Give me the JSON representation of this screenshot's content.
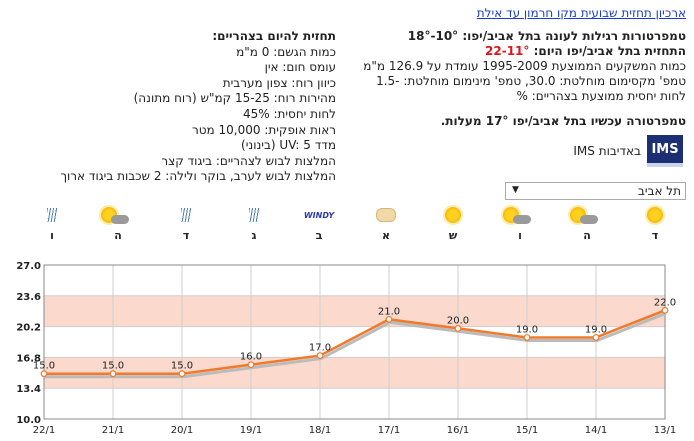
{
  "header": {
    "archive_link": "ארכיון תחזית שבועית מקו חרמון עד אילת"
  },
  "today_summary": {
    "normal_temp_label": "טמפרטורות רגילות לעונה בתל אביב/יפו:",
    "normal_temp_value": "10°-18°",
    "forecast_label": "התחזית בתל אביב/יפו היום:",
    "forecast_value": "11°-",
    "forecast_high": "22",
    "rain_stats": "כמות המשקעים הממוצעת 1995-2009 עומדת על 126.9 מ\"מ",
    "extremes": "טמפ' מקסימום מוחלטת: 30.0, טמפ' מינימום מוחלטת: -1.5",
    "humidity_avg": "לחות יחסית ממוצעת בצהריים: %",
    "current_temp": "טמפרטורה עכשיו בתל אביב/יפו 17° מעלות.",
    "credit": "באדיבות IMS",
    "logo_text": "IMS"
  },
  "noon_forecast": {
    "title": "תחזית להיום בצהריים:",
    "rows": [
      "כמות הגשם: 0 מ\"מ",
      "עומס חום: אין",
      "כיוון רוח: צפון מערבית",
      "מהירות רוח: 15-25 קמ\"ש (רוח מתונה)",
      "לחות יחסית: 45%",
      "ראות אופקית: 10,000 מטר",
      "מדד UV: 5 (בינוני)",
      "המלצות לבוש לצהריים: ביגוד קצר",
      "המלצות לבוש לערב, בוקר ולילה: 2 שכבות ביגוד ארוך"
    ]
  },
  "city_select": {
    "value": "תל אביב",
    "arrow": "▼"
  },
  "days": [
    {
      "label": "ו",
      "icon": "rain"
    },
    {
      "label": "ה",
      "icon": "sun-cloud"
    },
    {
      "label": "ד",
      "icon": "rain"
    },
    {
      "label": "ג",
      "icon": "rain"
    },
    {
      "label": "ב",
      "icon": "windy",
      "icon_text": "WINDY"
    },
    {
      "label": "א",
      "icon": "haze"
    },
    {
      "label": "ש",
      "icon": "sun"
    },
    {
      "label": "ו",
      "icon": "sun-cloud"
    },
    {
      "label": "ה",
      "icon": "sun-cloud"
    },
    {
      "label": "ד",
      "icon": "sun"
    }
  ],
  "chart_data": {
    "type": "line",
    "categories": [
      "22/1",
      "21/1",
      "20/1",
      "19/1",
      "18/1",
      "17/1",
      "16/1",
      "15/1",
      "14/1",
      "13/1"
    ],
    "values": [
      15.0,
      15.0,
      15.0,
      16.0,
      17.0,
      21.0,
      20.0,
      19.0,
      19.0,
      22.0
    ],
    "ylim": [
      10.0,
      27.0
    ],
    "yticks": [
      "10.0",
      "13.4",
      "16.8",
      "20.2",
      "23.6",
      "27.0"
    ],
    "bands": [
      [
        13.4,
        16.8
      ],
      [
        20.2,
        23.6
      ]
    ],
    "line_color": "#f07a2a",
    "band_color": "#fbd9cd",
    "grid": true
  }
}
